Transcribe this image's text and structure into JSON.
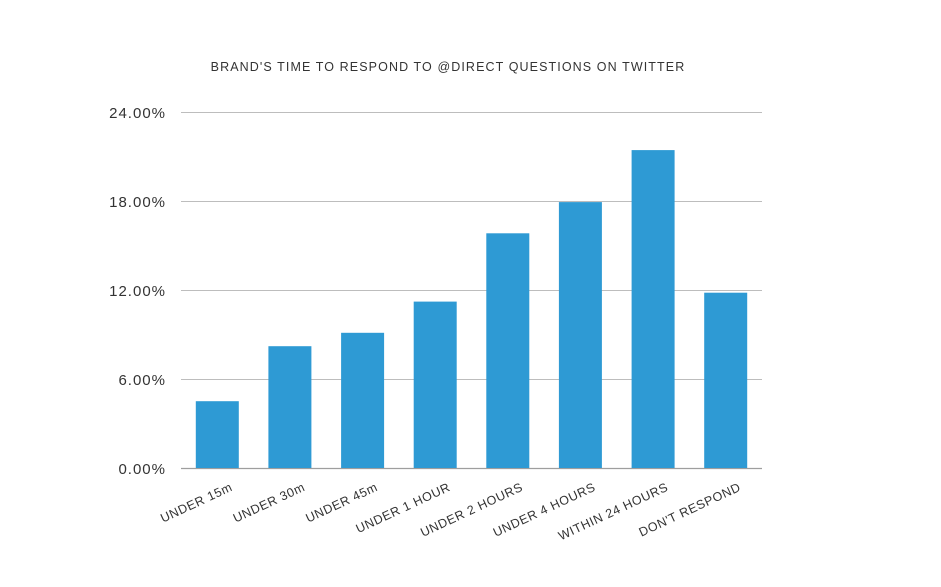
{
  "chart_data": {
    "type": "bar",
    "title": "BRAND'S TIME TO RESPOND TO @DIRECT QUESTIONS ON TWITTER",
    "xlabel": "",
    "ylabel": "",
    "categories": [
      "UNDER 15m",
      "UNDER 30m",
      "UNDER 45m",
      "UNDER 1 HOUR",
      "UNDER 2 HOURS",
      "UNDER 4 HOURS",
      "WITHIN 24 HOURS",
      "DON'T RESPOND"
    ],
    "values": [
      4.5,
      8.2,
      9.1,
      11.2,
      15.8,
      17.9,
      21.4,
      11.8
    ],
    "ylim": [
      0,
      24
    ],
    "yticks": [
      0,
      6,
      12,
      18,
      24
    ],
    "ytick_labels": [
      "0.00%",
      "6.00%",
      "12.00%",
      "18.00%",
      "24.00%"
    ],
    "grid": true,
    "legend": "none",
    "bar_color": "#2e9ad4",
    "grid_color": "#bdbdbd",
    "axis_color": "#9e9e9e",
    "text_color": "#333333"
  }
}
